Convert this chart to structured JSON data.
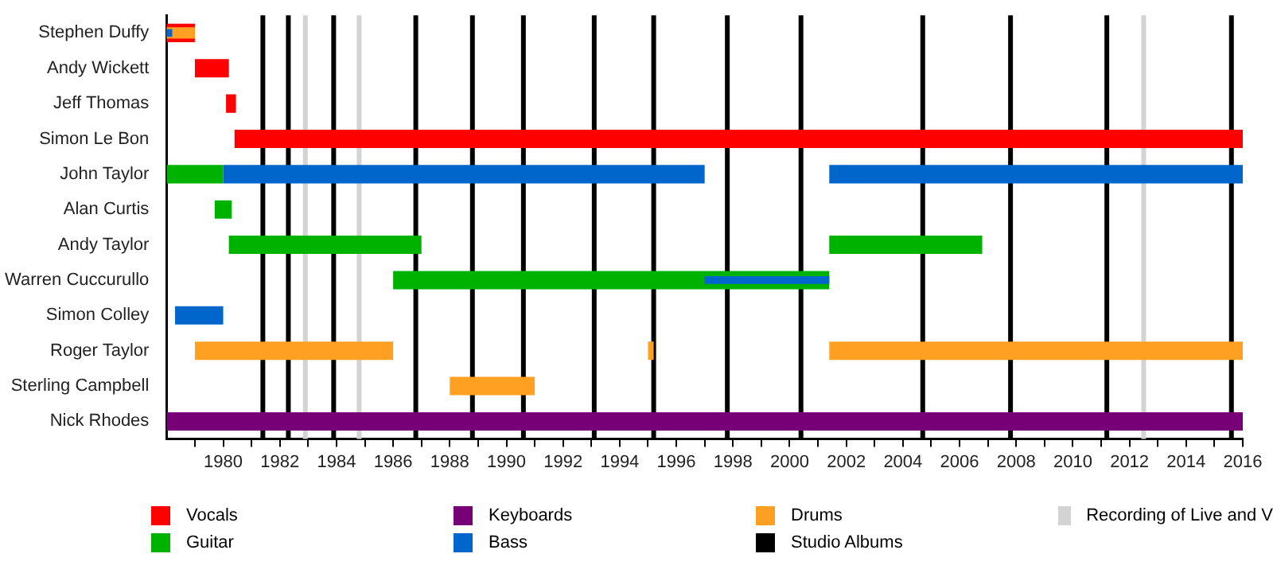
{
  "chart_data": {
    "type": "bar",
    "orientation": "horizontal",
    "legend": "bottom",
    "grid": false,
    "categories": [
      "Stephen Duffy",
      "Andy Wickett",
      "Jeff Thomas",
      "Simon Le Bon",
      "John Taylor",
      "Alan Curtis",
      "Andy Taylor",
      "Warren Cuccurullo",
      "Simon Colley",
      "Roger Taylor",
      "Sterling Campbell",
      "Nick Rhodes"
    ],
    "xlim": [
      1978,
      2016
    ],
    "xticks": [
      {
        "value": 1979,
        "label": null
      },
      1980,
      {
        "value": 1981,
        "label": null
      },
      1982,
      {
        "value": 1983,
        "label": null
      },
      1984,
      {
        "value": 1985,
        "label": null
      },
      1986,
      {
        "value": 1987,
        "label": null
      },
      1988,
      {
        "value": 1989,
        "label": null
      },
      1990,
      {
        "value": 1991,
        "label": null
      },
      1992,
      {
        "value": 1993,
        "label": null
      },
      1994,
      {
        "value": 1995,
        "label": null
      },
      1996,
      {
        "value": 1997,
        "label": null
      },
      1998,
      {
        "value": 1999,
        "label": null
      },
      2000,
      {
        "value": 2001,
        "label": null
      },
      2002,
      {
        "value": 2003,
        "label": null
      },
      2004,
      {
        "value": 2005,
        "label": null
      },
      2006,
      {
        "value": 2007,
        "label": null
      },
      2008,
      {
        "value": 2009,
        "label": null
      },
      2010,
      {
        "value": 2011,
        "label": null
      },
      2012,
      {
        "value": 2013,
        "label": null
      },
      2014,
      {
        "value": 2015,
        "label": null
      },
      2016
    ],
    "series": [
      {
        "name": "Vocals",
        "color": "#ff0000",
        "base": [
          1978,
          1979,
          1980.1,
          1980.4,
          null,
          null,
          null,
          null,
          null,
          null,
          null,
          null
        ],
        "values": [
          1,
          1.2,
          0.35,
          35.6,
          null,
          null,
          null,
          null,
          null,
          null,
          null,
          null
        ]
      },
      {
        "name": "Guitar",
        "color": "#00b200",
        "base": [
          null,
          null,
          null,
          null,
          1978,
          1979.7,
          1980.2,
          1986,
          null,
          null,
          null,
          null
        ],
        "values": [
          null,
          null,
          null,
          null,
          2,
          0.6,
          6.8,
          15.4,
          null,
          null,
          null,
          null
        ]
      },
      {
        "name": "Keyboards",
        "color": "#770077",
        "base": [
          null,
          null,
          null,
          null,
          null,
          null,
          null,
          null,
          null,
          null,
          null,
          1978
        ],
        "values": [
          null,
          null,
          null,
          null,
          null,
          null,
          null,
          null,
          null,
          null,
          null,
          38
        ]
      },
      {
        "name": "Bass",
        "color": "#0066cc",
        "base": [
          null,
          null,
          null,
          null,
          1980,
          null,
          null,
          null,
          1978.3,
          null,
          null,
          null
        ],
        "values": [
          null,
          null,
          null,
          null,
          17,
          null,
          null,
          null,
          1.7,
          null,
          null,
          null
        ]
      },
      {
        "name": "Drums",
        "color": "#ffa023",
        "base": [
          null,
          null,
          null,
          null,
          null,
          null,
          null,
          null,
          null,
          1979,
          1988,
          null
        ],
        "values": [
          null,
          null,
          null,
          null,
          null,
          null,
          null,
          null,
          null,
          7,
          3,
          null
        ]
      },
      {
        "color": "#0066cc",
        "base": [
          null,
          null,
          null,
          null,
          2001.4,
          null,
          null,
          null,
          null,
          null,
          null,
          null
        ],
        "values": [
          null,
          null,
          null,
          null,
          14.6,
          null,
          null,
          null,
          null,
          null,
          null,
          null
        ]
      },
      {
        "color": "#00b200",
        "base": [
          null,
          null,
          null,
          null,
          null,
          null,
          2001.4,
          null,
          null,
          null,
          null,
          null
        ],
        "values": [
          null,
          null,
          null,
          null,
          null,
          null,
          5.4,
          null,
          null,
          null,
          null,
          null
        ]
      },
      {
        "color": "#ffa023",
        "base": [
          null,
          null,
          null,
          null,
          null,
          null,
          null,
          null,
          null,
          1995,
          null,
          null
        ],
        "values": [
          null,
          null,
          null,
          null,
          null,
          null,
          null,
          null,
          null,
          0.2,
          null,
          null
        ]
      },
      {
        "color": "#ffa023",
        "base": [
          null,
          null,
          null,
          null,
          null,
          null,
          null,
          null,
          null,
          2001.4,
          null,
          null
        ],
        "values": [
          null,
          null,
          null,
          null,
          null,
          null,
          null,
          null,
          null,
          14.6,
          null,
          null
        ]
      },
      {
        "color": "#ffa023",
        "base": [
          1978,
          null,
          null,
          null,
          null,
          null,
          null,
          null,
          null,
          null,
          null,
          null
        ],
        "values": [
          1,
          null,
          null,
          null,
          null,
          null,
          null,
          null,
          null,
          null,
          null,
          null
        ]
      },
      {
        "color": "#0066cc",
        "base": [
          1978,
          null,
          null,
          null,
          null,
          null,
          null,
          1997,
          null,
          null,
          null,
          null
        ],
        "values": [
          0.2,
          null,
          null,
          null,
          null,
          null,
          null,
          4.4,
          null,
          null,
          null,
          null
        ]
      }
    ],
    "ref_lines": [
      {
        "axis": "x",
        "value": 1981.4,
        "label": "Studio Albums",
        "color": "#000000"
      },
      {
        "axis": "x",
        "value": 1982.3,
        "color": "#000000"
      },
      {
        "axis": "x",
        "value": 1983.9,
        "color": "#000000"
      },
      {
        "axis": "x",
        "value": 1986.8,
        "color": "#000000"
      },
      {
        "axis": "x",
        "value": 1988.8,
        "color": "#000000"
      },
      {
        "axis": "x",
        "value": 1990.6,
        "color": "#000000"
      },
      {
        "axis": "x",
        "value": 1993.1,
        "color": "#000000"
      },
      {
        "axis": "x",
        "value": 1995.2,
        "color": "#000000"
      },
      {
        "axis": "x",
        "value": 1997.8,
        "color": "#000000"
      },
      {
        "axis": "x",
        "value": 2000.4,
        "color": "#000000"
      },
      {
        "axis": "x",
        "value": 2004.7,
        "color": "#000000"
      },
      {
        "axis": "x",
        "value": 2007.8,
        "color": "#000000"
      },
      {
        "axis": "x",
        "value": 2011.2,
        "color": "#000000"
      },
      {
        "axis": "x",
        "value": 2015.6,
        "color": "#000000"
      },
      {
        "axis": "x",
        "value": 1982.9,
        "label": "Recording of Live and V",
        "color": "#d3d3d3"
      },
      {
        "axis": "x",
        "value": 1984.8,
        "color": "#d3d3d3"
      },
      {
        "axis": "x",
        "value": 2012.5,
        "color": "#d3d3d3"
      }
    ]
  }
}
